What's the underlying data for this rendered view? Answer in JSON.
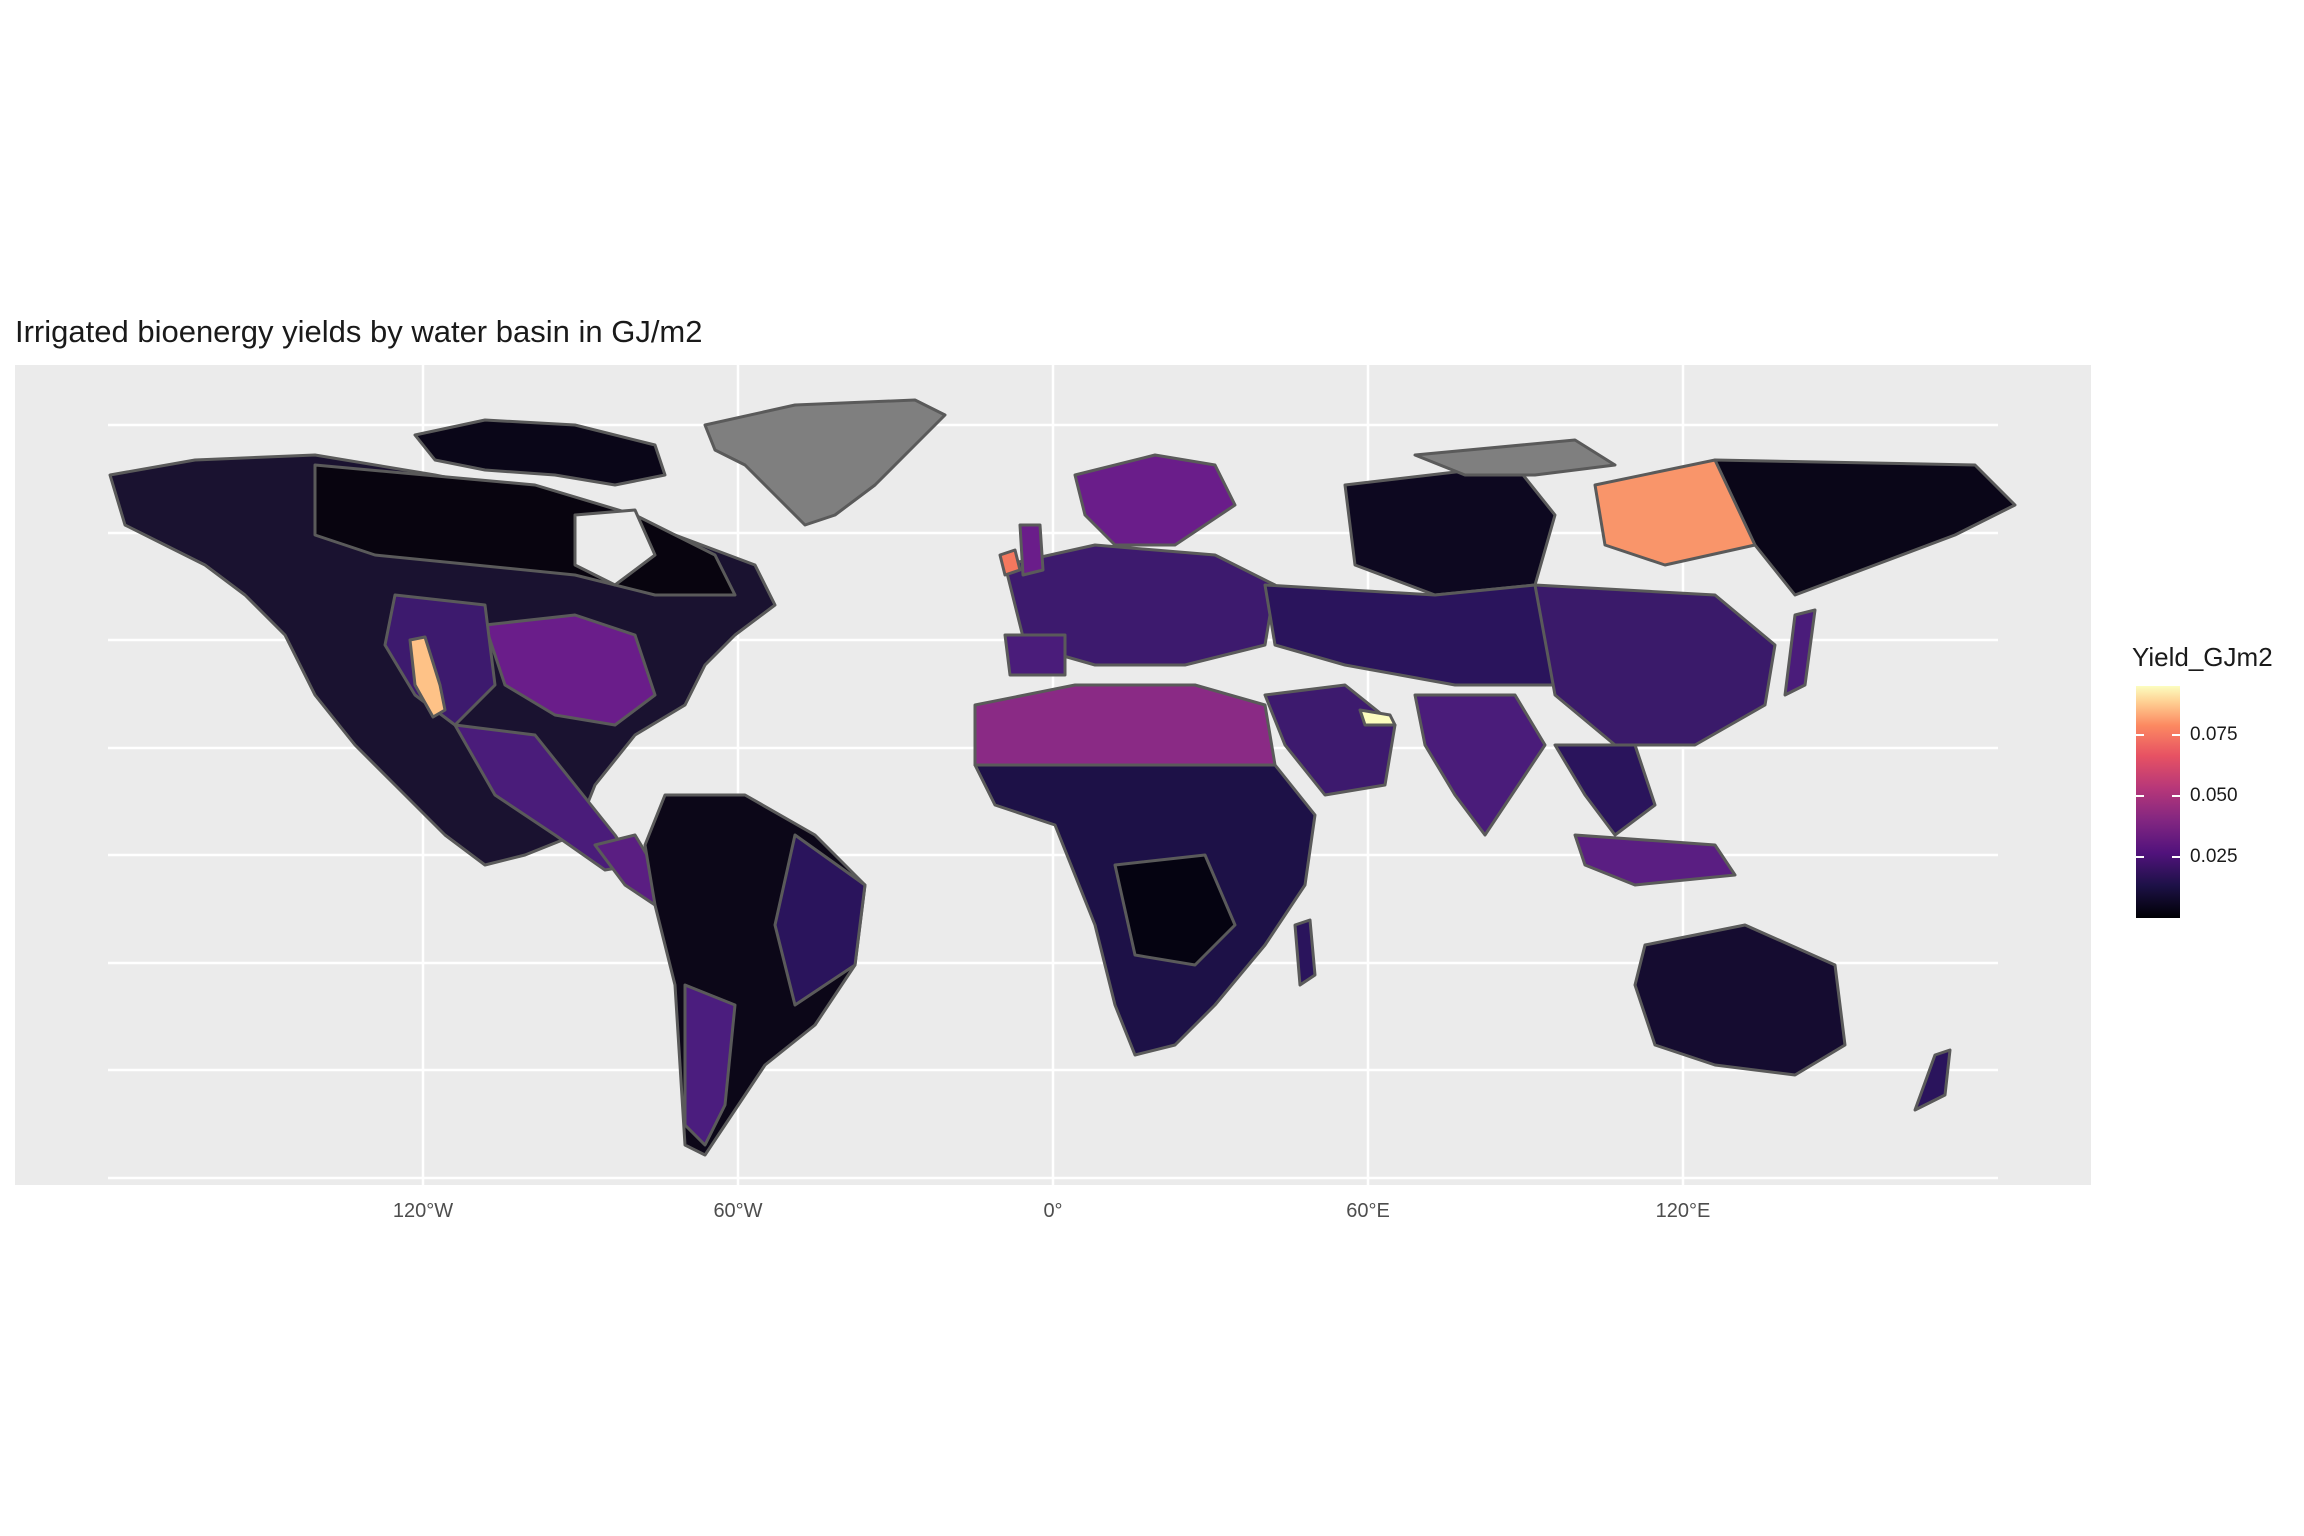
{
  "title": "Irrigated bioenergy yields by water basin in GJ/m2",
  "x_axis": {
    "ticks": [
      "120°W",
      "60°W",
      "0°",
      "60°E",
      "120°E"
    ],
    "tick_values": [
      -120,
      -60,
      0,
      60,
      120
    ]
  },
  "legend": {
    "title": "Yield_GJm2",
    "ticks": [
      "0.075",
      "0.050",
      "0.025"
    ],
    "tick_values": [
      0.075,
      0.05,
      0.025
    ],
    "range": [
      0.0,
      0.095
    ],
    "palette": "magma",
    "colors": [
      "#000004",
      "#1d1147",
      "#51127c",
      "#822681",
      "#b73779",
      "#e75263",
      "#fc8961",
      "#fecf92",
      "#fcfdbf"
    ]
  },
  "colors": {
    "panel": "#ebebeb",
    "grid": "#ffffff",
    "no_data": "#7f7f7f",
    "border": "#5a5a5a"
  },
  "chart_data": {
    "type": "choropleth",
    "xlim": [
      -180,
      180
    ],
    "ylim": [
      -60,
      84
    ],
    "fill_variable": "Yield_GJm2",
    "notable_regions": [
      {
        "region": "California (western US)",
        "value": 0.085
      },
      {
        "region": "Siberia (Lena basin)",
        "value": 0.08
      },
      {
        "region": "Ireland",
        "value": 0.075
      },
      {
        "region": "Arabian coast (Persian Gulf)",
        "value": 0.095
      },
      {
        "region": "Sahara",
        "value": 0.045
      },
      {
        "region": "Mississippi basin",
        "value": 0.04
      },
      {
        "region": "Europe",
        "value": 0.035
      },
      {
        "region": "China",
        "value": 0.03
      },
      {
        "region": "Amazon",
        "value": 0.005
      },
      {
        "region": "Canada",
        "value": 0.005
      },
      {
        "region": "Australia",
        "value": 0.012
      },
      {
        "region": "Greenland",
        "value": null
      }
    ]
  }
}
